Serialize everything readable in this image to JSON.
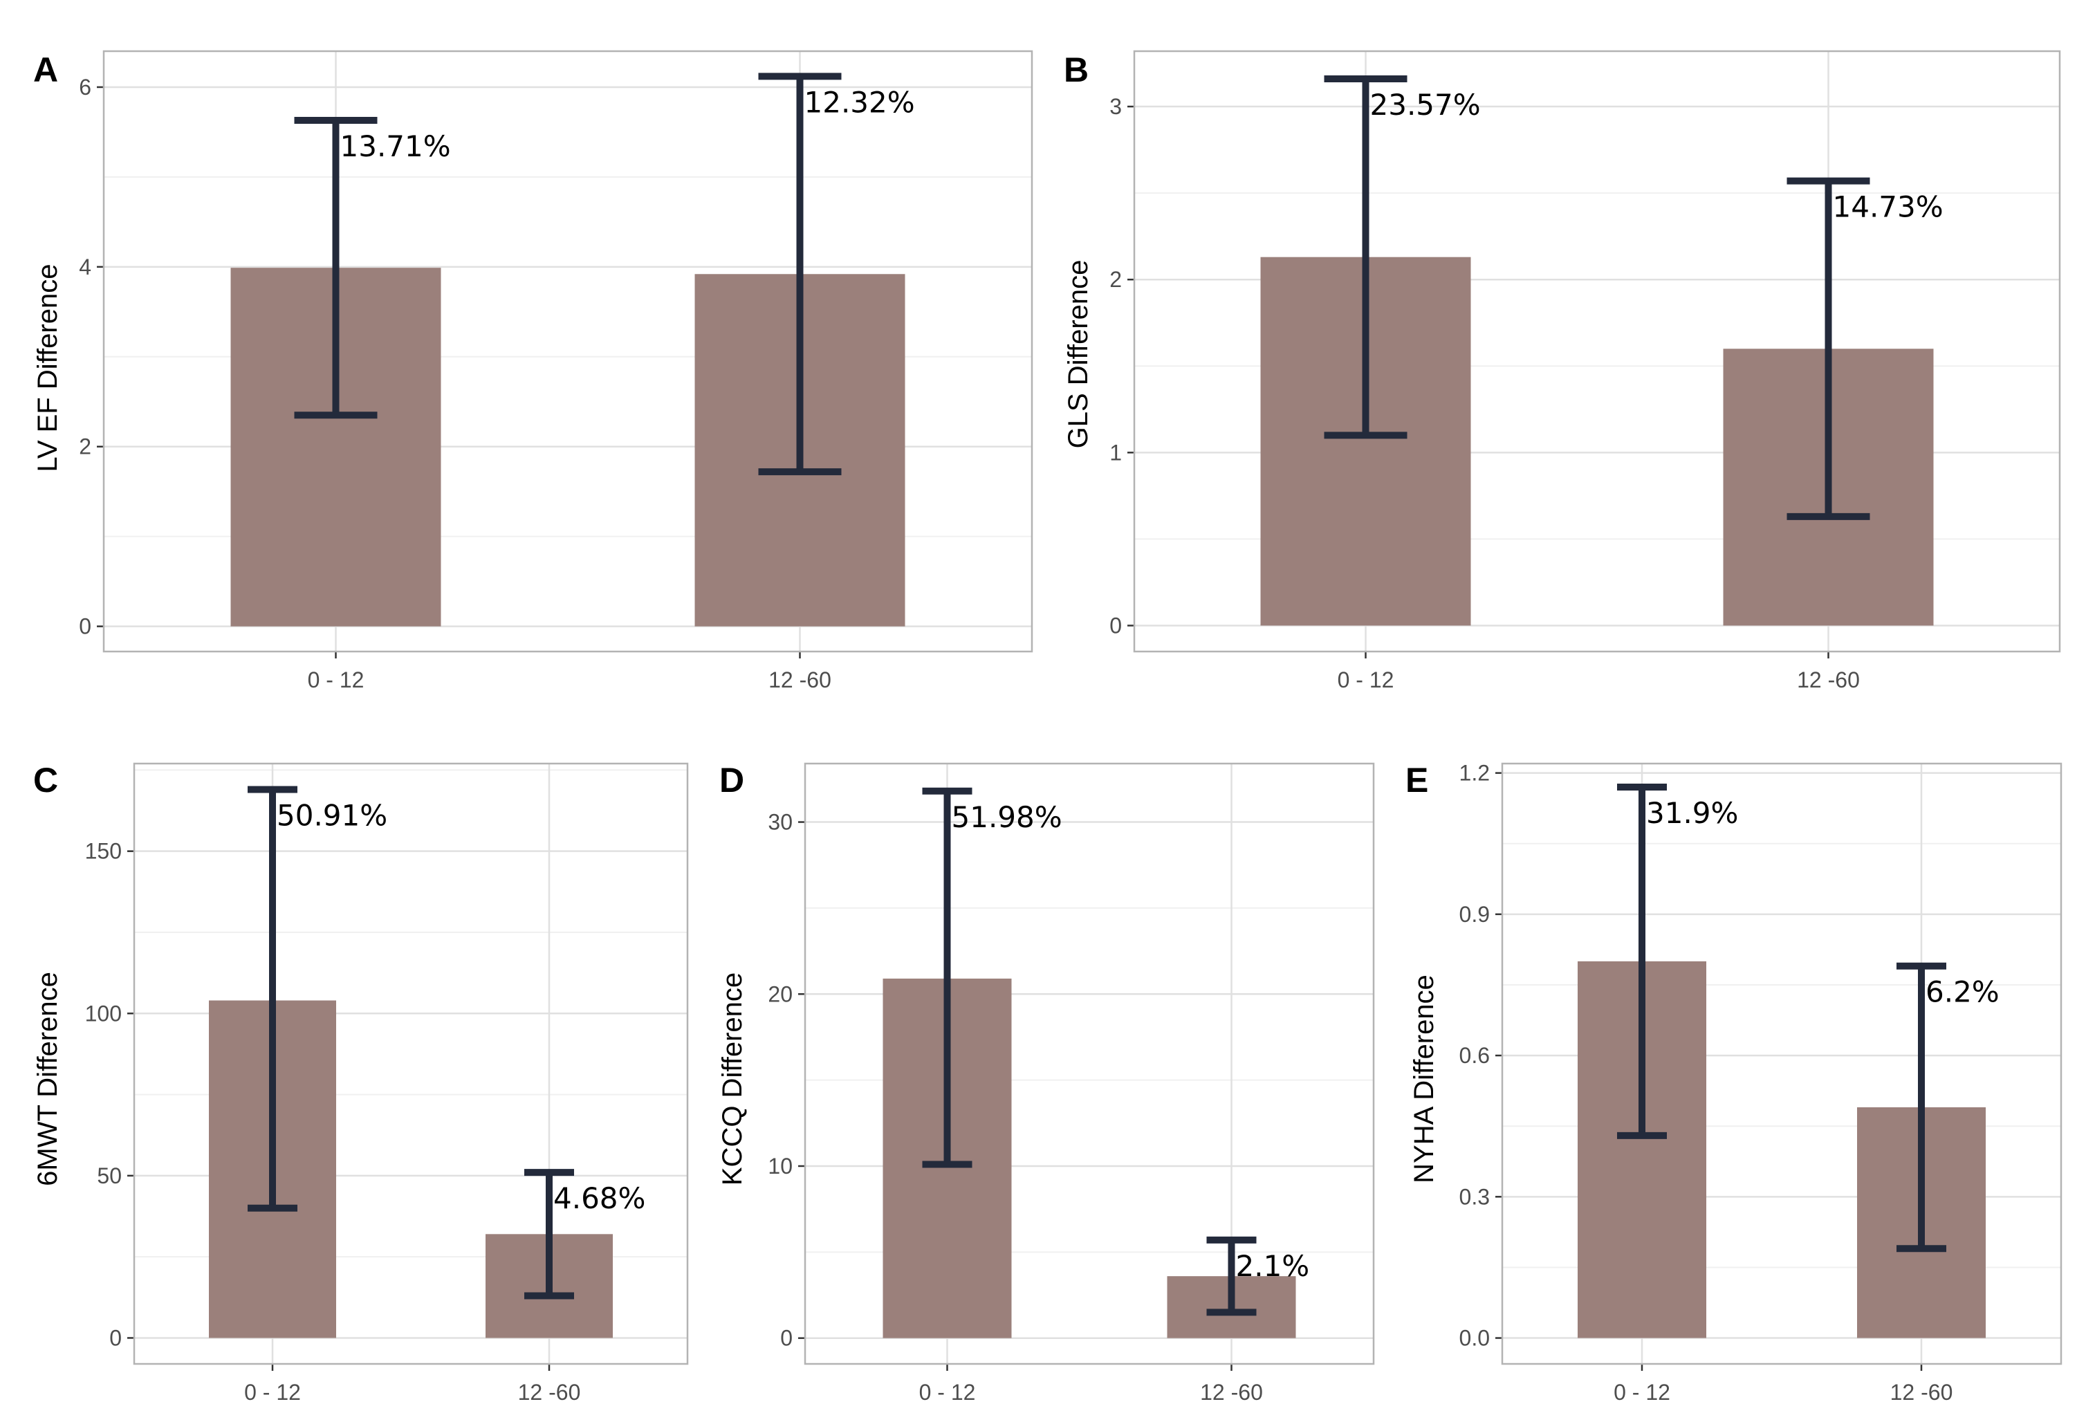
{
  "chart_data": [
    {
      "panel": "A",
      "type": "bar",
      "categories": [
        "0 - 12",
        "12 -60"
      ],
      "values": [
        3.99,
        3.92
      ],
      "error_low": [
        2.35,
        1.72
      ],
      "error_high": [
        5.63,
        6.12
      ],
      "labels": [
        "13.71%",
        "12.32%"
      ],
      "ylabel": "LV EF Difference",
      "xlabel": "",
      "ylim": [
        -0.28,
        6.4
      ],
      "yticks": [
        0,
        2,
        4,
        6
      ],
      "ytick_labels": [
        "0",
        "2",
        "4",
        "6"
      ],
      "grid": true
    },
    {
      "panel": "B",
      "type": "bar",
      "categories": [
        "0 - 12",
        "12 -60"
      ],
      "values": [
        2.13,
        1.6
      ],
      "error_low": [
        1.1,
        0.63
      ],
      "error_high": [
        3.16,
        2.57
      ],
      "labels": [
        "23.57%",
        "14.73%"
      ],
      "ylabel": "GLS Difference",
      "xlabel": "",
      "ylim": [
        -0.15,
        3.32
      ],
      "yticks": [
        0,
        1,
        2,
        3
      ],
      "ytick_labels": [
        "0",
        "1",
        "2",
        "3"
      ],
      "grid": true
    },
    {
      "panel": "C",
      "type": "bar",
      "categories": [
        "0 - 12",
        "12 -60"
      ],
      "values": [
        104,
        32
      ],
      "error_low": [
        40,
        13
      ],
      "error_high": [
        169,
        51
      ],
      "labels": [
        "50.91%",
        "4.68%"
      ],
      "ylabel": "6MWT Difference",
      "xlabel": "",
      "ylim": [
        -8,
        177
      ],
      "yticks": [
        0,
        50,
        100,
        150
      ],
      "ytick_labels": [
        "0",
        "50",
        "100",
        "150"
      ],
      "grid": true
    },
    {
      "panel": "D",
      "type": "bar",
      "categories": [
        "0 - 12",
        "12 -60"
      ],
      "values": [
        20.9,
        3.6
      ],
      "error_low": [
        10.1,
        1.5
      ],
      "error_high": [
        31.8,
        5.7
      ],
      "labels": [
        "51.98%",
        "2.1%"
      ],
      "ylabel": "KCCQ Difference",
      "xlabel": "",
      "ylim": [
        -1.5,
        33.4
      ],
      "yticks": [
        0,
        10,
        20,
        30
      ],
      "ytick_labels": [
        "0",
        "10",
        "20",
        "30"
      ],
      "grid": true
    },
    {
      "panel": "E",
      "type": "bar",
      "categories": [
        "0 - 12",
        "12 -60"
      ],
      "values": [
        0.8,
        0.49
      ],
      "error_low": [
        0.43,
        0.19
      ],
      "error_high": [
        1.17,
        0.79
      ],
      "labels": [
        "31.9%",
        "6.2%"
      ],
      "ylabel": "NYHA Difference",
      "xlabel": "",
      "ylim": [
        -0.055,
        1.22
      ],
      "yticks": [
        0,
        0.3,
        0.6,
        0.9,
        1.2
      ],
      "ytick_labels": [
        "0.0",
        "0.3",
        "0.6",
        "0.9",
        "1.2"
      ],
      "grid": true
    }
  ],
  "colors": {
    "bar_fill": "#9b807b",
    "error_bar": "#232a3b",
    "panel_border": "#b3b3b3",
    "grid_major": "#e0e0e0",
    "grid_minor": "#f0f0f0"
  }
}
